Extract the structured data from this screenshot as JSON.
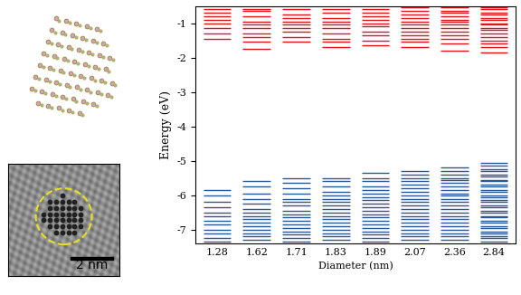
{
  "chart_data": {
    "type": "energy_levels",
    "x_label": "Diameter (nm)",
    "y_label": "Energy (eV)",
    "categories": [
      "1.28",
      "1.62",
      "1.71",
      "1.83",
      "1.89",
      "2.07",
      "2.36",
      "2.84"
    ],
    "ylim": [
      -7.4,
      -0.5
    ],
    "yticks": [
      -1,
      -2,
      -3,
      -4,
      -5,
      -6,
      -7
    ],
    "series": [
      {
        "color": "#e3141b",
        "values": [
          [
            -0.6,
            -0.7,
            -0.8,
            -0.9,
            -1.0,
            -1.15,
            -1.3,
            -1.45
          ],
          [
            -0.6,
            -0.65,
            -0.8,
            -0.95,
            -1.05,
            -1.15,
            -1.3,
            -1.4,
            -1.55,
            -1.75
          ],
          [
            -0.6,
            -0.75,
            -0.85,
            -0.95,
            -1.05,
            -1.15,
            -1.25,
            -1.4,
            -1.55
          ],
          [
            -0.6,
            -0.7,
            -0.85,
            -0.95,
            -1.05,
            -1.15,
            -1.3,
            -1.45,
            -1.55,
            -1.7
          ],
          [
            -0.6,
            -0.7,
            -0.8,
            -0.9,
            -1.0,
            -1.1,
            -1.25,
            -1.35,
            -1.5,
            -1.65
          ],
          [
            -0.55,
            -0.65,
            -0.75,
            -0.85,
            -0.95,
            -1.05,
            -1.15,
            -1.25,
            -1.35,
            -1.45,
            -1.55,
            -1.7
          ],
          [
            -0.55,
            -0.65,
            -0.7,
            -0.8,
            -0.9,
            -0.95,
            -1.05,
            -1.15,
            -1.25,
            -1.35,
            -1.45,
            -1.6,
            -1.8
          ],
          [
            -0.55,
            -0.6,
            -0.7,
            -0.75,
            -0.85,
            -0.9,
            -1.0,
            -1.05,
            -1.15,
            -1.2,
            -1.3,
            -1.4,
            -1.5,
            -1.6,
            -1.7,
            -1.85
          ]
        ]
      },
      {
        "color": "#2b5797",
        "values": [
          [
            -5.85,
            -6.0,
            -6.2,
            -6.35,
            -6.5,
            -6.6,
            -6.75,
            -6.85,
            -7.0,
            -7.1,
            -7.25,
            -7.35
          ],
          [
            -5.6,
            -5.75,
            -5.95,
            -6.1,
            -6.25,
            -6.4,
            -6.5,
            -6.6,
            -6.7,
            -6.8,
            -6.9,
            -7.0,
            -7.1,
            -7.2,
            -7.3
          ],
          [
            -5.5,
            -5.65,
            -5.8,
            -5.95,
            -6.1,
            -6.2,
            -6.3,
            -6.45,
            -6.55,
            -6.65,
            -6.75,
            -6.85,
            -6.95,
            -7.05,
            -7.15,
            -7.25,
            -7.35
          ],
          [
            -5.5,
            -5.6,
            -5.75,
            -5.9,
            -6.0,
            -6.1,
            -6.2,
            -6.3,
            -6.4,
            -6.5,
            -6.6,
            -6.7,
            -6.8,
            -6.9,
            -7.0,
            -7.1,
            -7.2,
            -7.3
          ],
          [
            -5.35,
            -5.5,
            -5.6,
            -5.75,
            -5.85,
            -5.95,
            -6.05,
            -6.15,
            -6.25,
            -6.35,
            -6.45,
            -6.55,
            -6.65,
            -6.75,
            -6.85,
            -6.95,
            -7.05,
            -7.15,
            -7.25,
            -7.35
          ],
          [
            -5.3,
            -5.4,
            -5.5,
            -5.6,
            -5.7,
            -5.8,
            -5.9,
            -6.0,
            -6.1,
            -6.2,
            -6.3,
            -6.4,
            -6.5,
            -6.6,
            -6.7,
            -6.8,
            -6.9,
            -7.0,
            -7.1,
            -7.2,
            -7.3
          ],
          [
            -5.2,
            -5.3,
            -5.4,
            -5.5,
            -5.55,
            -5.65,
            -5.75,
            -5.85,
            -5.95,
            -6.0,
            -6.1,
            -6.2,
            -6.3,
            -6.4,
            -6.5,
            -6.6,
            -6.7,
            -6.8,
            -6.9,
            -7.0,
            -7.1,
            -7.2,
            -7.3
          ],
          [
            -5.05,
            -5.15,
            -5.25,
            -5.3,
            -5.4,
            -5.45,
            -5.55,
            -5.6,
            -5.7,
            -5.75,
            -5.85,
            -5.9,
            -6.0,
            -6.05,
            -6.15,
            -6.2,
            -6.3,
            -6.35,
            -6.45,
            -6.5,
            -6.6,
            -6.65,
            -6.75,
            -6.8,
            -6.9,
            -6.95,
            -7.05,
            -7.1,
            -7.2,
            -7.25,
            -7.35
          ]
        ]
      }
    ]
  },
  "inset": {
    "scale_bar": "2 nm"
  }
}
